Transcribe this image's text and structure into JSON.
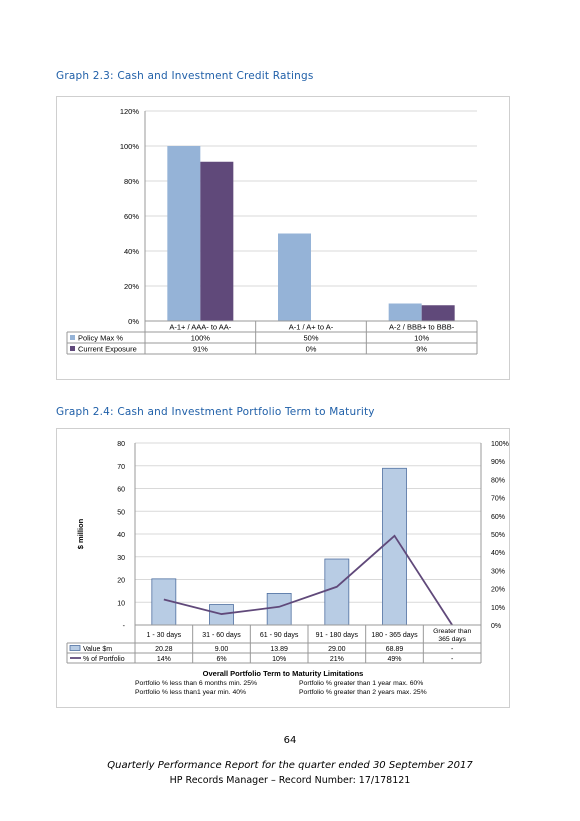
{
  "graph1": {
    "heading": "Graph 2.3:  Cash and Investment Credit Ratings",
    "chart_data": {
      "type": "bar",
      "categories": [
        "A-1+ / AAA- to AA-",
        "A-1 / A+ to A-",
        "A-2 / BBB+ to BBB-"
      ],
      "series": [
        {
          "name": "Policy Max %",
          "values": [
            100,
            50,
            10
          ],
          "labels": [
            "100%",
            "50%",
            "10%"
          ],
          "color": "#95b3d7"
        },
        {
          "name": "Current Exposure",
          "values": [
            91,
            0,
            9
          ],
          "labels": [
            "91%",
            "0%",
            "9%"
          ],
          "color": "#60497a"
        }
      ],
      "yticks": [
        "0%",
        "20%",
        "40%",
        "60%",
        "80%",
        "100%",
        "120%"
      ],
      "ylim": [
        0,
        120
      ],
      "grid": true,
      "legend": "data-table"
    }
  },
  "graph2": {
    "heading": "Graph 2.4:  Cash and Investment Portfolio Term to Maturity",
    "chart_data": {
      "type": "bar",
      "categories": [
        "1 - 30 days",
        "31 - 60 days",
        "61 - 90 days",
        "91 - 180 days",
        "180 - 365 days",
        "Greater than 365 days"
      ],
      "ylabel": "$ million",
      "ylim": [
        0,
        80
      ],
      "yticks": [
        "-",
        "10",
        "20",
        "30",
        "40",
        "50",
        "60",
        "70",
        "80"
      ],
      "y2lim": [
        0,
        100
      ],
      "y2ticks": [
        "0%",
        "10%",
        "20%",
        "30%",
        "40%",
        "50%",
        "60%",
        "70%",
        "80%",
        "90%",
        "100%"
      ],
      "series": [
        {
          "name": "Value $m",
          "kind": "bar",
          "values": [
            20.28,
            9.0,
            13.89,
            29.0,
            68.89,
            0
          ],
          "labels": [
            "20.28",
            "9.00",
            "13.89",
            "29.00",
            "68.89",
            "-"
          ],
          "color": "#b8cce4"
        },
        {
          "name": "% of Portfolio",
          "kind": "line",
          "axis": "right",
          "values": [
            14,
            6,
            10,
            21,
            49,
            0
          ],
          "labels": [
            "14%",
            "6%",
            "10%",
            "21%",
            "49%",
            "-"
          ],
          "color": "#60497a"
        }
      ],
      "grid": true,
      "legend": "data-table"
    },
    "limits": {
      "title": "Overall Portfolio Term to Maturity Limitations",
      "rows": [
        [
          "Portfolio  % less than 6 months   min. 25%",
          "Portfolio  % greater than  1 year    max. 60%"
        ],
        [
          "Portfolio  % less than1 year        min.  40%",
          "Portfolio  % greater than  2 years   max. 25%"
        ]
      ]
    }
  },
  "page_number": "64",
  "footer_line1": "Quarterly Performance Report for the quarter ended 30 September 2017",
  "footer_line2": "HP Records Manager – Record Number: 17/178121"
}
